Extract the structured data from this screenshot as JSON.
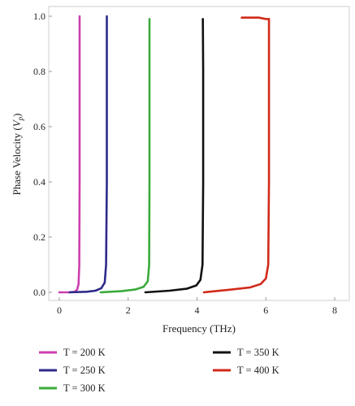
{
  "chart_data": {
    "type": "line",
    "title": "",
    "xlabel": "Frequency (THz)",
    "ylabel": "Phase Velocity (Vp)",
    "ylabel_parts": [
      "Phase Velocity (",
      "V",
      "p",
      ")"
    ],
    "xlim": [
      0,
      8
    ],
    "ylim": [
      0,
      1
    ],
    "x_ticks": [
      "0",
      "2",
      "4",
      "6",
      "8"
    ],
    "y_ticks": [
      "0.0",
      "0.2",
      "0.4",
      "0.6",
      "0.8",
      "1.0"
    ],
    "grid": false,
    "legend_position": "bottom",
    "series": [
      {
        "name": "T = 200 K",
        "color": "#cc3fae",
        "x": [
          0.0,
          0.3,
          0.45,
          0.52,
          0.56,
          0.58,
          0.59,
          0.59,
          0.59
        ],
        "y": [
          0.0,
          0.0,
          0.002,
          0.01,
          0.03,
          0.1,
          0.4,
          0.8,
          1.0
        ]
      },
      {
        "name": "T = 250 K",
        "color": "#2e2a8a",
        "x": [
          0.3,
          0.8,
          1.05,
          1.22,
          1.32,
          1.36,
          1.38,
          1.38,
          1.38
        ],
        "y": [
          0.0,
          0.002,
          0.006,
          0.015,
          0.035,
          0.1,
          0.4,
          0.8,
          1.0
        ]
      },
      {
        "name": "T = 300 K",
        "color": "#3aab3a",
        "x": [
          1.2,
          1.8,
          2.2,
          2.45,
          2.57,
          2.61,
          2.62,
          2.62,
          2.62
        ],
        "y": [
          0.0,
          0.004,
          0.01,
          0.02,
          0.04,
          0.1,
          0.4,
          0.8,
          0.99
        ]
      },
      {
        "name": "T = 350 K",
        "color": "#111111",
        "x": [
          2.5,
          3.2,
          3.7,
          3.98,
          4.1,
          4.16,
          4.18,
          4.18,
          4.17
        ],
        "y": [
          0.0,
          0.006,
          0.013,
          0.025,
          0.045,
          0.1,
          0.4,
          0.8,
          0.99
        ]
      },
      {
        "name": "T = 400 K",
        "color": "#d12a1a",
        "x": [
          4.2,
          5.0,
          5.55,
          5.85,
          6.0,
          6.07,
          6.09,
          6.09,
          6.09
        ],
        "y": [
          0.0,
          0.01,
          0.018,
          0.03,
          0.05,
          0.1,
          0.4,
          0.8,
          0.99
        ]
      }
    ],
    "legend": {
      "items": [
        "T = 200 K",
        "T = 250 K",
        "T = 300 K",
        "T = 350 K",
        "T = 400 K"
      ]
    }
  }
}
